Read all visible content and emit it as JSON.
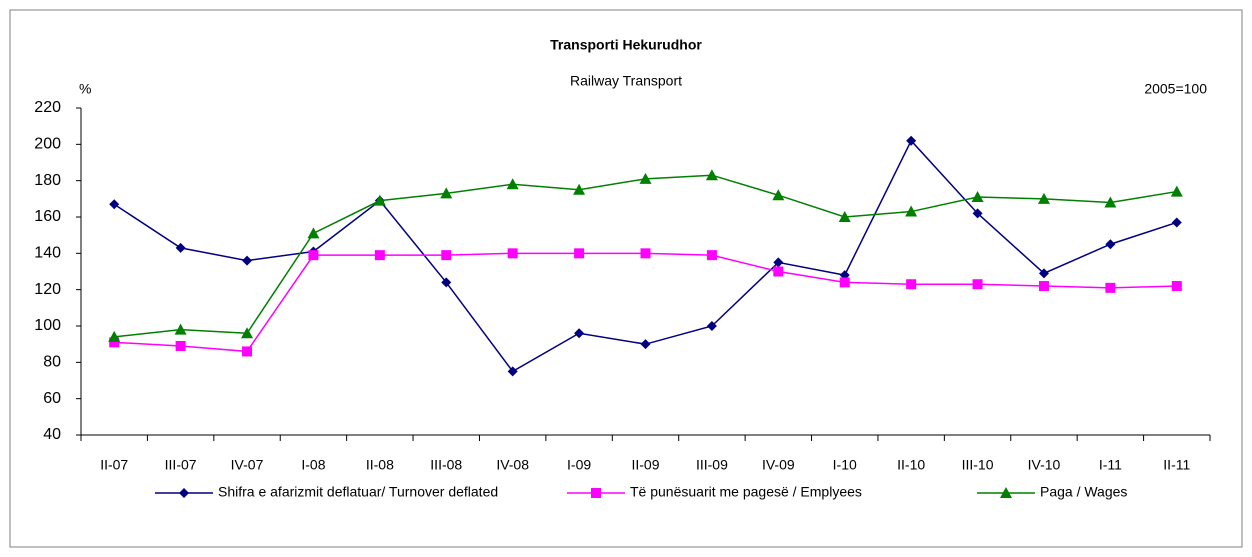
{
  "chart_data": {
    "type": "line",
    "title": "Transporti Hekurudhor",
    "subtitle": "Railway Transport",
    "y_unit_label": "%",
    "base_label": "2005=100",
    "categories": [
      "II-07",
      "III-07",
      "IV-07",
      "I-08",
      "II-08",
      "III-08",
      "IV-08",
      "I-09",
      "II-09",
      "III-09",
      "IV-09",
      "I-10",
      "II-10",
      "III-10",
      "IV-10",
      "I-11",
      "II-11"
    ],
    "series": [
      {
        "name": "Shifra e afarizmit deflatuar/ Turnover deflated",
        "color": "#000080",
        "marker": "diamond",
        "values": [
          167,
          143,
          136,
          141,
          169,
          124,
          75,
          96,
          90,
          100,
          135,
          128,
          202,
          162,
          129,
          145,
          157
        ]
      },
      {
        "name": "Të punësuarit me pagesë / Emplyees",
        "color": "#ff00ff",
        "marker": "square",
        "values": [
          91,
          89,
          86,
          139,
          139,
          139,
          140,
          140,
          140,
          139,
          130,
          124,
          123,
          123,
          122,
          121,
          122
        ]
      },
      {
        "name": "Paga / Wages",
        "color": "#008000",
        "marker": "triangle",
        "values": [
          94,
          98,
          96,
          151,
          169,
          173,
          178,
          175,
          181,
          183,
          172,
          160,
          163,
          171,
          170,
          168,
          174
        ]
      }
    ],
    "ylim": [
      40,
      220
    ],
    "yticks": [
      40,
      60,
      80,
      100,
      120,
      140,
      160,
      180,
      200,
      220
    ],
    "grid": false,
    "legend": "bottom"
  }
}
